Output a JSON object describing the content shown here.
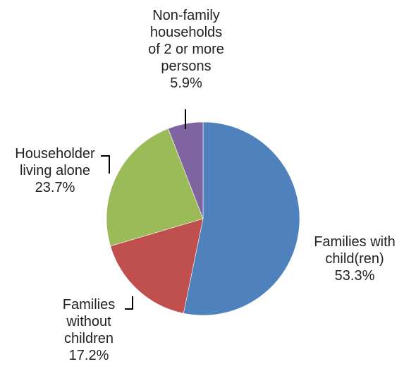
{
  "chart_data": {
    "type": "pie",
    "title": "",
    "slices": [
      {
        "label_lines": [
          "Families with",
          "child(ren)"
        ],
        "value_label": "53.3%",
        "value": 53.3,
        "color": "#4F81BD"
      },
      {
        "label_lines": [
          "Families",
          "without",
          "children"
        ],
        "value_label": "17.2%",
        "value": 17.2,
        "color": "#C0504D"
      },
      {
        "label_lines": [
          "Householder",
          "living alone"
        ],
        "value_label": "23.7%",
        "value": 23.7,
        "color": "#9BBB59"
      },
      {
        "label_lines": [
          "Non-family",
          "households",
          "of 2 or more",
          "persons"
        ],
        "value_label": "5.9%",
        "value": 5.9,
        "color": "#8064A2"
      }
    ],
    "start_angle": "12 o'clock",
    "direction": "clockwise",
    "legend": "none"
  }
}
